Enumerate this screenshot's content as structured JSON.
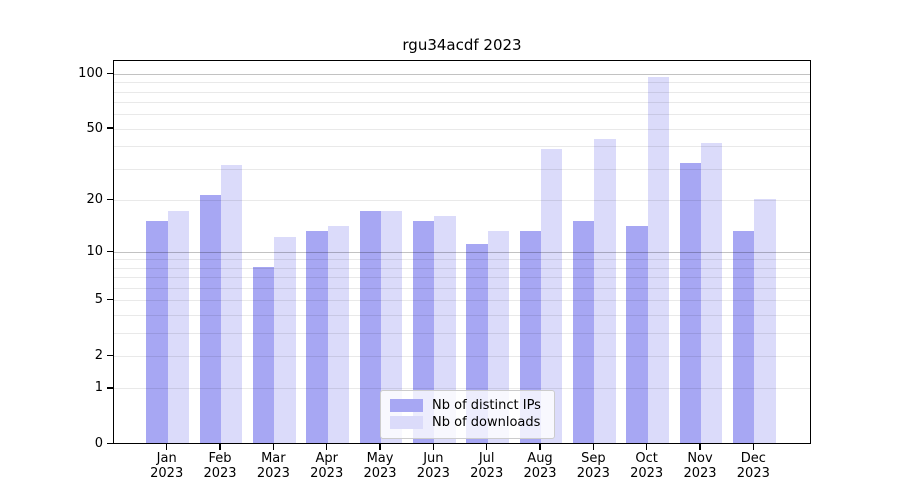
{
  "chart_data": {
    "type": "bar",
    "title": "rgu34acdf 2023",
    "year": "2023",
    "categories": [
      "Jan",
      "Feb",
      "Mar",
      "Apr",
      "May",
      "Jun",
      "Jul",
      "Aug",
      "Sep",
      "Oct",
      "Nov",
      "Dec"
    ],
    "series": [
      {
        "name": "Nb of distinct IPs",
        "color": "#a7a7f3",
        "values": [
          15,
          21,
          8,
          13,
          17,
          15,
          11,
          13,
          15,
          14,
          32,
          13
        ]
      },
      {
        "name": "Nb of downloads",
        "color": "#dbdbfa",
        "values": [
          17,
          31,
          12,
          14,
          17,
          16,
          13,
          38,
          43,
          95,
          41,
          20
        ]
      }
    ],
    "xlabel": "",
    "ylabel": "",
    "yscale": "log1p",
    "ylim": [
      0,
      118
    ],
    "yticks": [
      0,
      1,
      2,
      5,
      10,
      20,
      50,
      100
    ],
    "major_grid_values": [
      10,
      100
    ],
    "minor_grid_values": [
      1,
      2,
      3,
      4,
      5,
      6,
      7,
      8,
      9,
      20,
      30,
      40,
      50,
      60,
      70,
      80,
      90
    ],
    "grid": true,
    "legend_position": "lower center",
    "colors": {
      "bar_distinct_ips": "#a7a7f3",
      "bar_downloads": "#dbdbfa",
      "major_grid": "rgba(0,0,0,0.24)",
      "minor_grid": "rgba(0,0,0,0.085)",
      "spine": "#000000",
      "background": "#ffffff",
      "text": "#000000"
    }
  }
}
